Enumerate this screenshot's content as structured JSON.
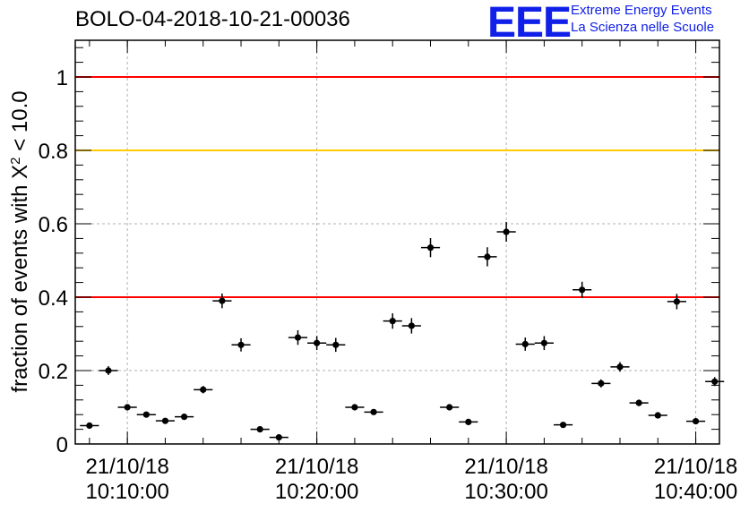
{
  "title": "BOLO-04-2018-10-21-00036",
  "logo": {
    "mark": "EEE",
    "line1": "Extreme Energy Events",
    "line2": "La Scienza nelle Scuole",
    "color": "#1020e8"
  },
  "chart_data": {
    "type": "scatter",
    "ylabel": "fraction of events with X² < 10.0",
    "xlabel": "",
    "ylim": [
      0,
      1.1
    ],
    "xlim": [
      "2018-10-21 10:07:15",
      "2018-10-21 10:41:15"
    ],
    "grid": true,
    "y_ticks": [
      "0",
      "0.2",
      "0.4",
      "0.6",
      "0.8",
      "1"
    ],
    "x_ticks": [
      {
        "date": "21/10/18",
        "time": "10:10:00"
      },
      {
        "date": "21/10/18",
        "time": "10:20:00"
      },
      {
        "date": "21/10/18",
        "time": "10:30:00"
      },
      {
        "date": "21/10/18",
        "time": "10:40:00"
      }
    ],
    "reference_lines": [
      {
        "y": 1.0,
        "color": "#ff0000"
      },
      {
        "y": 0.8,
        "color": "#ffcc00"
      },
      {
        "y": 0.4,
        "color": "#ff0000"
      }
    ],
    "points": [
      {
        "t": "10:08:00",
        "y": 0.05,
        "err": 0.006
      },
      {
        "t": "10:09:00",
        "y": 0.2,
        "err": 0.012
      },
      {
        "t": "10:10:00",
        "y": 0.1,
        "err": 0.008
      },
      {
        "t": "10:11:00",
        "y": 0.08,
        "err": 0.007
      },
      {
        "t": "10:12:00",
        "y": 0.063,
        "err": 0.006
      },
      {
        "t": "10:13:00",
        "y": 0.074,
        "err": 0.007
      },
      {
        "t": "10:14:00",
        "y": 0.148,
        "err": 0.01
      },
      {
        "t": "10:15:00",
        "y": 0.39,
        "err": 0.02
      },
      {
        "t": "10:16:00",
        "y": 0.27,
        "err": 0.018
      },
      {
        "t": "10:17:00",
        "y": 0.04,
        "err": 0.006
      },
      {
        "t": "10:18:00",
        "y": 0.018,
        "err": 0.004
      },
      {
        "t": "10:19:00",
        "y": 0.29,
        "err": 0.02
      },
      {
        "t": "10:20:00",
        "y": 0.275,
        "err": 0.019
      },
      {
        "t": "10:21:00",
        "y": 0.27,
        "err": 0.019
      },
      {
        "t": "10:22:00",
        "y": 0.1,
        "err": 0.008
      },
      {
        "t": "10:23:00",
        "y": 0.087,
        "err": 0.007
      },
      {
        "t": "10:24:00",
        "y": 0.335,
        "err": 0.021
      },
      {
        "t": "10:25:00",
        "y": 0.322,
        "err": 0.021
      },
      {
        "t": "10:26:00",
        "y": 0.535,
        "err": 0.026
      },
      {
        "t": "10:27:00",
        "y": 0.1,
        "err": 0.008
      },
      {
        "t": "10:28:00",
        "y": 0.06,
        "err": 0.006
      },
      {
        "t": "10:29:00",
        "y": 0.51,
        "err": 0.026
      },
      {
        "t": "10:30:00",
        "y": 0.578,
        "err": 0.027
      },
      {
        "t": "10:31:00",
        "y": 0.272,
        "err": 0.018
      },
      {
        "t": "10:32:00",
        "y": 0.275,
        "err": 0.019
      },
      {
        "t": "10:33:00",
        "y": 0.052,
        "err": 0.006
      },
      {
        "t": "10:34:00",
        "y": 0.42,
        "err": 0.022
      },
      {
        "t": "10:35:00",
        "y": 0.165,
        "err": 0.011
      },
      {
        "t": "10:36:00",
        "y": 0.21,
        "err": 0.013
      },
      {
        "t": "10:37:00",
        "y": 0.112,
        "err": 0.009
      },
      {
        "t": "10:38:00",
        "y": 0.078,
        "err": 0.007
      },
      {
        "t": "10:39:00",
        "y": 0.388,
        "err": 0.021
      },
      {
        "t": "10:40:00",
        "y": 0.062,
        "err": 0.006
      },
      {
        "t": "10:41:00",
        "y": 0.17,
        "err": 0.012
      }
    ]
  }
}
